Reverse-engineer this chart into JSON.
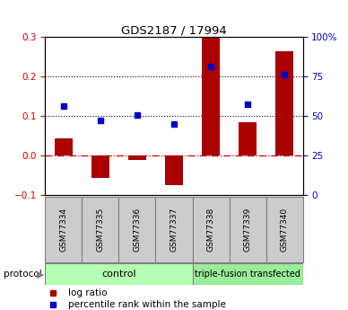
{
  "title": "GDS2187 / 17994",
  "samples": [
    "GSM77334",
    "GSM77335",
    "GSM77336",
    "GSM77337",
    "GSM77338",
    "GSM77339",
    "GSM77340"
  ],
  "log_ratio": [
    0.045,
    -0.055,
    -0.01,
    -0.075,
    0.305,
    0.085,
    0.265
  ],
  "percentile_rank": [
    0.125,
    0.09,
    0.103,
    0.08,
    0.225,
    0.13,
    0.205
  ],
  "groups": [
    {
      "label": "control",
      "n": 4,
      "color": "#b3ffb3"
    },
    {
      "label": "triple-fusion transfected",
      "n": 3,
      "color": "#99ee99"
    }
  ],
  "left_ylim": [
    -0.1,
    0.3
  ],
  "right_ylim": [
    0,
    100
  ],
  "left_yticks": [
    -0.1,
    0.0,
    0.1,
    0.2,
    0.3
  ],
  "right_yticks": [
    0,
    25,
    50,
    75,
    100
  ],
  "right_yticklabels": [
    "0",
    "25",
    "50",
    "75",
    "100%"
  ],
  "bar_color": "#aa0000",
  "dot_color": "#0000cc",
  "hline_0_color": "#cc0000",
  "dotted_color": "black",
  "bg_xtick": "#cccccc",
  "protocol_label": "protocol",
  "legend_log": "log ratio",
  "legend_pct": "percentile rank within the sample"
}
